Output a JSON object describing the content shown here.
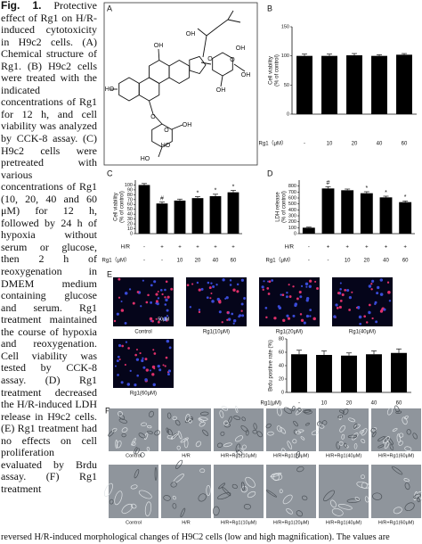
{
  "caption": {
    "label": "Fig. 1.",
    "text": "Protective effect of Rg1 on H/R-induced cytotoxicity in H9c2 cells. (A) Chemical structure of Rg1. (B) H9c2 cells were treated with the indicated concentrations of Rg1 for 12 h, and cell viability was analyzed by CCK-8 assay. (C) H9c2 cells were pretreated with various concentrations of Rg1 (10, 20, 40 and 60 μM) for 12 h, followed by 24 h of hypoxia without serum or glucose, then 2 h of reoxygenation in DMEM medium containing glucose and serum. Rg1 treatment maintained the course of hypoxia and reoxygenation. Cell viability was tested by CCK-8 assay. (D) Rg1 treatment decreased the H/R-induced LDH release in H9c2 cells. (E) Rg1 treatment had no effects on cell proliferation evaluated by Brdu assay. (F) Rg1 treatment",
    "continued": "reversed H/R-induced morphological changes of H9C2 cells (low and high magnification). The values are"
  },
  "panels": {
    "A": {
      "letter": "A",
      "structure_labels": [
        "HO",
        "OH",
        "O",
        "O",
        "OH",
        "OH",
        "HO",
        "O",
        "HO",
        "OH",
        "OH",
        "O",
        "OH"
      ]
    },
    "B": {
      "letter": "B",
      "type": "bar",
      "y_label": [
        "Cell viability",
        "(% of control)"
      ],
      "values": [
        100,
        100,
        101,
        100,
        102
      ],
      "errors": [
        3,
        3,
        3,
        2,
        2
      ],
      "ylim": [
        0,
        150
      ],
      "yticks": [
        0,
        50,
        100,
        150
      ],
      "color": "#000000",
      "rows": [
        {
          "name": "Rg1（μM）",
          "labels": [
            "-",
            "10",
            "20",
            "40",
            "60"
          ]
        }
      ]
    },
    "C": {
      "letter": "C",
      "type": "bar",
      "y_label": [
        "Cell viability",
        "(% of control)"
      ],
      "values": [
        100,
        62,
        68,
        73,
        77,
        85
      ],
      "errors": [
        3,
        3,
        3,
        3,
        4,
        4
      ],
      "annotations": [
        null,
        "#",
        null,
        "*",
        "*",
        "*"
      ],
      "ylim": [
        0,
        110
      ],
      "yticks": [
        0,
        10,
        20,
        30,
        40,
        50,
        60,
        70,
        80,
        90,
        100
      ],
      "color": "#000000",
      "rows": [
        {
          "name": "H/R",
          "labels": [
            "-",
            "+",
            "+",
            "+",
            "+",
            "+"
          ]
        },
        {
          "name": "Rg1（μM）",
          "labels": [
            "-",
            "-",
            "10",
            "20",
            "40",
            "60"
          ]
        }
      ]
    },
    "D": {
      "letter": "D",
      "type": "bar",
      "y_label": [
        "LDH release",
        "(% of control)"
      ],
      "values": [
        100,
        760,
        730,
        680,
        610,
        530
      ],
      "errors": [
        10,
        30,
        20,
        25,
        20,
        20
      ],
      "annotations": [
        null,
        "#",
        null,
        "*",
        "*",
        "*"
      ],
      "ylim": [
        0,
        900
      ],
      "yticks": [
        0,
        100,
        200,
        300,
        400,
        500,
        600,
        700,
        800
      ],
      "color": "#000000",
      "rows": [
        {
          "name": "H/R",
          "labels": [
            "-",
            "+",
            "+",
            "+",
            "+",
            "+"
          ]
        },
        {
          "name": "Rg1（μM）",
          "labels": [
            "-",
            "-",
            "10",
            "20",
            "40",
            "60"
          ]
        }
      ]
    },
    "E": {
      "letter": "E",
      "scale": "50μM",
      "images": [
        "Control",
        "Rg1(10μM)",
        "Rg1(20μM)",
        "Rg1(40μM)",
        "Rg1(60μM)"
      ],
      "chart": {
        "type": "bar",
        "y_label": [
          "Brdu positive rate (%)"
        ],
        "values": [
          57,
          56,
          55,
          57,
          59
        ],
        "errors": [
          6,
          6,
          4,
          5,
          6
        ],
        "ylim": [
          0,
          80
        ],
        "yticks": [
          0,
          20,
          40,
          60,
          80
        ],
        "color": "#000000",
        "rows": [
          {
            "name": "Rg1(μM)",
            "labels": [
              "-",
              "10",
              "20",
              "40",
              "60"
            ]
          }
        ]
      }
    },
    "F": {
      "letter": "F",
      "rows": [
        [
          "Control",
          "H/R",
          "H/R+Rg1(10μM)",
          "H/R+Rg1(20μM)",
          "H/R+Rg1(40μM)",
          "H/R+Rg1(60μM)"
        ],
        [
          "Control",
          "H/R",
          "H/R+Rg1(10μM)",
          "H/R+Rg1(20μM)",
          "H/R+Rg1(40μM)",
          "H/R+Rg1(60μM)"
        ]
      ]
    }
  }
}
